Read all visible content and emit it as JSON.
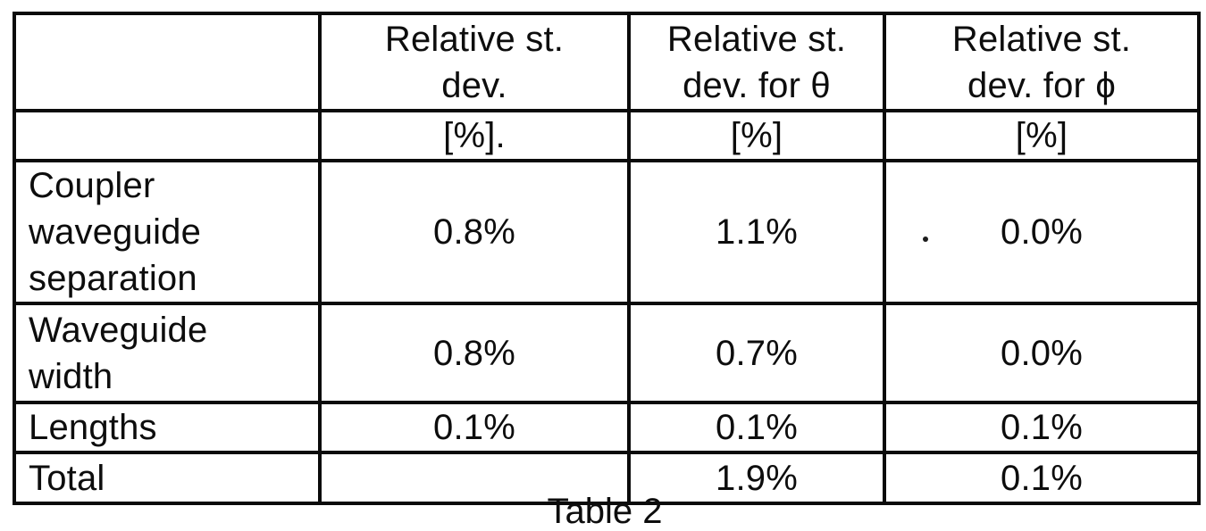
{
  "page": {
    "ink_color": "#0d0d0d",
    "background_color": "#ffffff",
    "caption": "Table 2"
  },
  "table": {
    "header_lines": [
      [
        ""
      ],
      [
        "Relative st.",
        "dev."
      ],
      [
        "Relative st.",
        "dev. for θ"
      ],
      [
        "Relative st.",
        "dev. for ϕ"
      ]
    ],
    "units": [
      "",
      "[%].",
      "[%]",
      "[%]"
    ],
    "rows": [
      {
        "label": "Coupler waveguide separation",
        "label_lines": [
          "Coupler",
          "waveguide",
          "separation"
        ],
        "values": [
          "0.8%",
          "1.1%",
          "0.0%"
        ]
      },
      {
        "label": "Waveguide width",
        "label_lines": [
          "Waveguide",
          "width"
        ],
        "values": [
          "0.8%",
          "0.7%",
          "0.0%"
        ]
      },
      {
        "label": "Lengths",
        "label_lines": [
          "Lengths"
        ],
        "values": [
          "0.1%",
          "0.1%",
          "0.1%"
        ]
      },
      {
        "label": "Total",
        "label_lines": [
          "Total"
        ],
        "values": [
          "",
          "1.9%",
          "0.1%"
        ]
      }
    ]
  }
}
